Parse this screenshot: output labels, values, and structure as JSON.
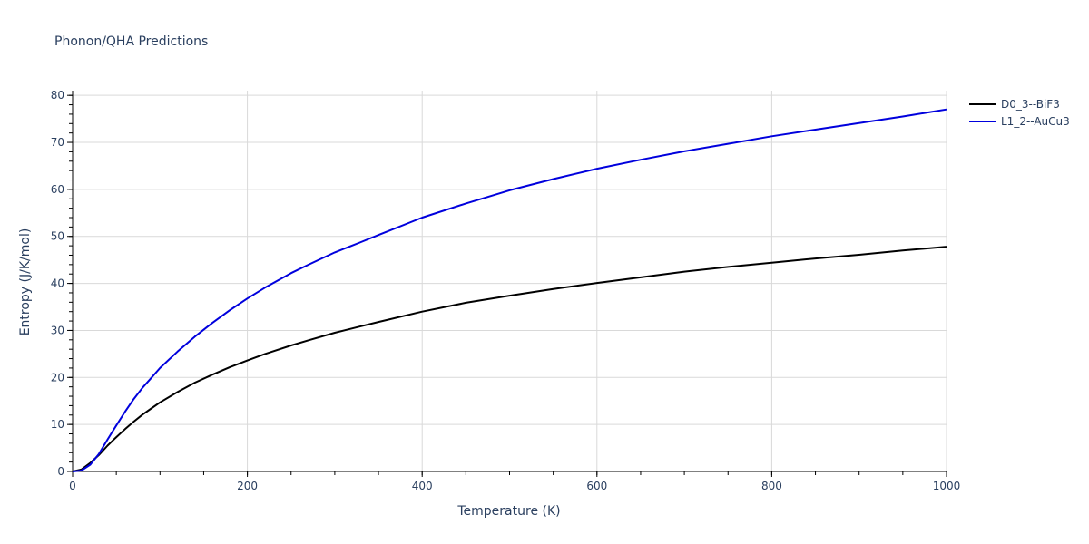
{
  "chart_data": {
    "type": "line",
    "title": "Phonon/QHA Predictions",
    "xlabel": "Temperature (K)",
    "ylabel": "Entropy (J/K/mol)",
    "xlim": [
      0,
      1000
    ],
    "ylim": [
      0,
      81
    ],
    "xticks": [
      0,
      200,
      400,
      600,
      800,
      1000
    ],
    "yticks": [
      0,
      10,
      20,
      30,
      40,
      50,
      60,
      70,
      80
    ],
    "grid": true,
    "legend_position": "top-right",
    "series": [
      {
        "name": "D0_3--BiF3",
        "color": "#000000",
        "x": [
          0,
          10,
          20,
          30,
          40,
          50,
          60,
          70,
          80,
          90,
          100,
          120,
          140,
          160,
          180,
          200,
          220,
          250,
          270,
          300,
          330,
          350,
          400,
          450,
          500,
          550,
          600,
          650,
          700,
          750,
          800,
          850,
          900,
          950,
          1000
        ],
        "y": [
          0,
          0.4,
          1.8,
          3.5,
          5.5,
          7.3,
          9.0,
          10.6,
          12.1,
          13.4,
          14.7,
          16.9,
          18.9,
          20.6,
          22.2,
          23.6,
          25.0,
          26.8,
          27.9,
          29.5,
          30.9,
          31.8,
          34.0,
          35.9,
          37.4,
          38.8,
          40.1,
          41.3,
          42.5,
          43.5,
          44.4,
          45.3,
          46.1,
          47.0,
          47.8
        ]
      },
      {
        "name": "L1_2--AuCu3",
        "color": "#0000dd",
        "x": [
          0,
          10,
          20,
          30,
          40,
          50,
          60,
          70,
          80,
          90,
          100,
          120,
          140,
          160,
          180,
          200,
          220,
          250,
          270,
          300,
          330,
          350,
          400,
          450,
          500,
          550,
          600,
          650,
          700,
          750,
          800,
          850,
          900,
          950,
          1000
        ],
        "y": [
          0,
          0.2,
          1.4,
          3.7,
          6.8,
          9.8,
          12.7,
          15.4,
          17.8,
          19.9,
          22.0,
          25.5,
          28.7,
          31.6,
          34.3,
          36.8,
          39.1,
          42.2,
          44.0,
          46.6,
          48.8,
          50.3,
          54.0,
          57.0,
          59.8,
          62.2,
          64.4,
          66.3,
          68.1,
          69.7,
          71.3,
          72.7,
          74.1,
          75.5,
          77.0
        ]
      }
    ]
  }
}
